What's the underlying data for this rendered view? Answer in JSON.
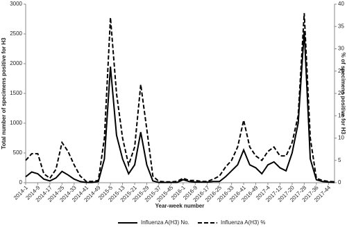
{
  "chart_data": {
    "type": "line",
    "x_label": "Year-week number",
    "y_label": "Total number of specimens positive for H3",
    "y2_label": "% of specimens positive for H3",
    "categories": [
      "2014-1",
      null,
      "2014-9",
      null,
      "2014-17",
      null,
      "2014-25",
      null,
      "2014-33",
      null,
      "2014-41",
      null,
      "2014-49",
      null,
      "2015-5",
      null,
      "2015-13",
      null,
      "2015-21",
      null,
      "2015-29",
      null,
      "2015-37",
      null,
      "2015-45",
      null,
      "2016-1",
      null,
      "2016-9",
      null,
      "2016-17",
      null,
      "2016-25",
      null,
      "2016-33",
      null,
      "2016-41",
      null,
      "2016-49",
      null,
      "2017-4",
      null,
      "2017-12",
      null,
      "2017-20",
      null,
      "2017-28",
      null,
      "2017-36",
      null,
      "2017-44",
      null
    ],
    "series": [
      {
        "name": "Influenza A(H3) No.",
        "color": "#000000",
        "dash": false,
        "values": [
          100,
          180,
          150,
          60,
          30,
          80,
          190,
          130,
          60,
          20,
          5,
          5,
          20,
          400,
          1950,
          800,
          400,
          150,
          300,
          850,
          300,
          30,
          5,
          5,
          5,
          5,
          50,
          20,
          10,
          10,
          10,
          20,
          20,
          100,
          200,
          300,
          550,
          300,
          250,
          150,
          300,
          350,
          250,
          200,
          500,
          1000,
          2550,
          400,
          50,
          20,
          10,
          5
        ]
      },
      {
        "name": "Influenza A(H3) %",
        "color": "#000000",
        "dash": true,
        "axis": "y2",
        "values": [
          5,
          6.5,
          6.5,
          2,
          1,
          3,
          9,
          7,
          4,
          1.5,
          0.3,
          0.3,
          0.5,
          10,
          37,
          20,
          10,
          4,
          8,
          22,
          12,
          1.5,
          0.3,
          0.2,
          0.2,
          0.3,
          1,
          0.5,
          0.5,
          0.3,
          0.3,
          0.8,
          1.5,
          3.5,
          5,
          8,
          14,
          8,
          6,
          5,
          7,
          8,
          6,
          6,
          9,
          15,
          38,
          10,
          1,
          0.5,
          0.3,
          0.2
        ]
      }
    ],
    "ylim": [
      0,
      3000
    ],
    "yticks": [
      0,
      500,
      1000,
      1500,
      2000,
      2500,
      3000
    ],
    "y2lim": [
      0,
      40
    ],
    "y2ticks": [
      0,
      5,
      10,
      15,
      20,
      25,
      30,
      35,
      40
    ],
    "legend": "bottom"
  }
}
